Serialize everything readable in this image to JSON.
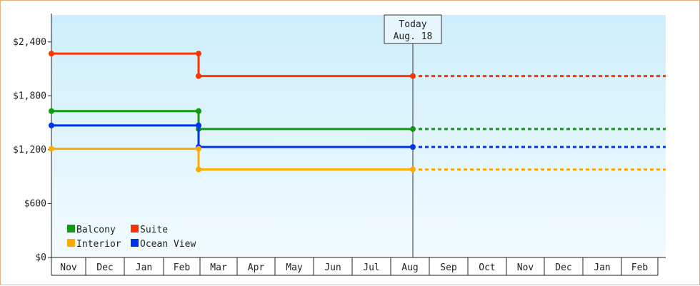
{
  "chart_data": {
    "type": "line",
    "step": true,
    "title": "",
    "xlabel": "",
    "ylabel": "",
    "x_categories": [
      "Nov",
      "Dec",
      "Jan",
      "Feb",
      "Mar",
      "Apr",
      "May",
      "Jun",
      "Jul",
      "Aug",
      "Sep",
      "Oct",
      "Nov",
      "Dec",
      "Jan",
      "Feb"
    ],
    "ylim": [
      0,
      2700
    ],
    "yticks": [
      0,
      600,
      1200,
      1800,
      2400
    ],
    "ytick_labels": [
      "$0",
      "$600",
      "$1,200",
      "$1,800",
      "$2,400"
    ],
    "grid": false,
    "legend_position": "bottom-left",
    "background_gradient": [
      "#cdeefb",
      "#f2fbfe"
    ],
    "series": [
      {
        "name": "Suite",
        "color": "#ff3300",
        "points": [
          {
            "x": "Nov",
            "y": 2270
          },
          {
            "x": "Mar",
            "y": 2270
          },
          {
            "x": "Mar",
            "y": 2020
          },
          {
            "x": "Aug",
            "y": 2020
          }
        ],
        "projection_to": "Feb"
      },
      {
        "name": "Balcony",
        "color": "#119911",
        "points": [
          {
            "x": "Nov",
            "y": 1630
          },
          {
            "x": "Mar",
            "y": 1630
          },
          {
            "x": "Mar",
            "y": 1430
          },
          {
            "x": "Aug",
            "y": 1430
          }
        ],
        "projection_to": "Feb"
      },
      {
        "name": "Ocean View",
        "color": "#0033ee",
        "points": [
          {
            "x": "Nov",
            "y": 1470
          },
          {
            "x": "Mar",
            "y": 1470
          },
          {
            "x": "Mar",
            "y": 1230
          },
          {
            "x": "Aug",
            "y": 1230
          }
        ],
        "projection_to": "Feb"
      },
      {
        "name": "Interior",
        "color": "#ffaa00",
        "points": [
          {
            "x": "Nov",
            "y": 1210
          },
          {
            "x": "Mar",
            "y": 1210
          },
          {
            "x": "Mar",
            "y": 980
          },
          {
            "x": "Aug",
            "y": 980
          }
        ],
        "projection_to": "Feb"
      }
    ],
    "legend_rows": [
      [
        "Balcony",
        "Suite"
      ],
      [
        "Interior",
        "Ocean View"
      ]
    ],
    "annotation": {
      "x": "Aug",
      "line1": "Today",
      "line2": "Aug. 18"
    }
  }
}
